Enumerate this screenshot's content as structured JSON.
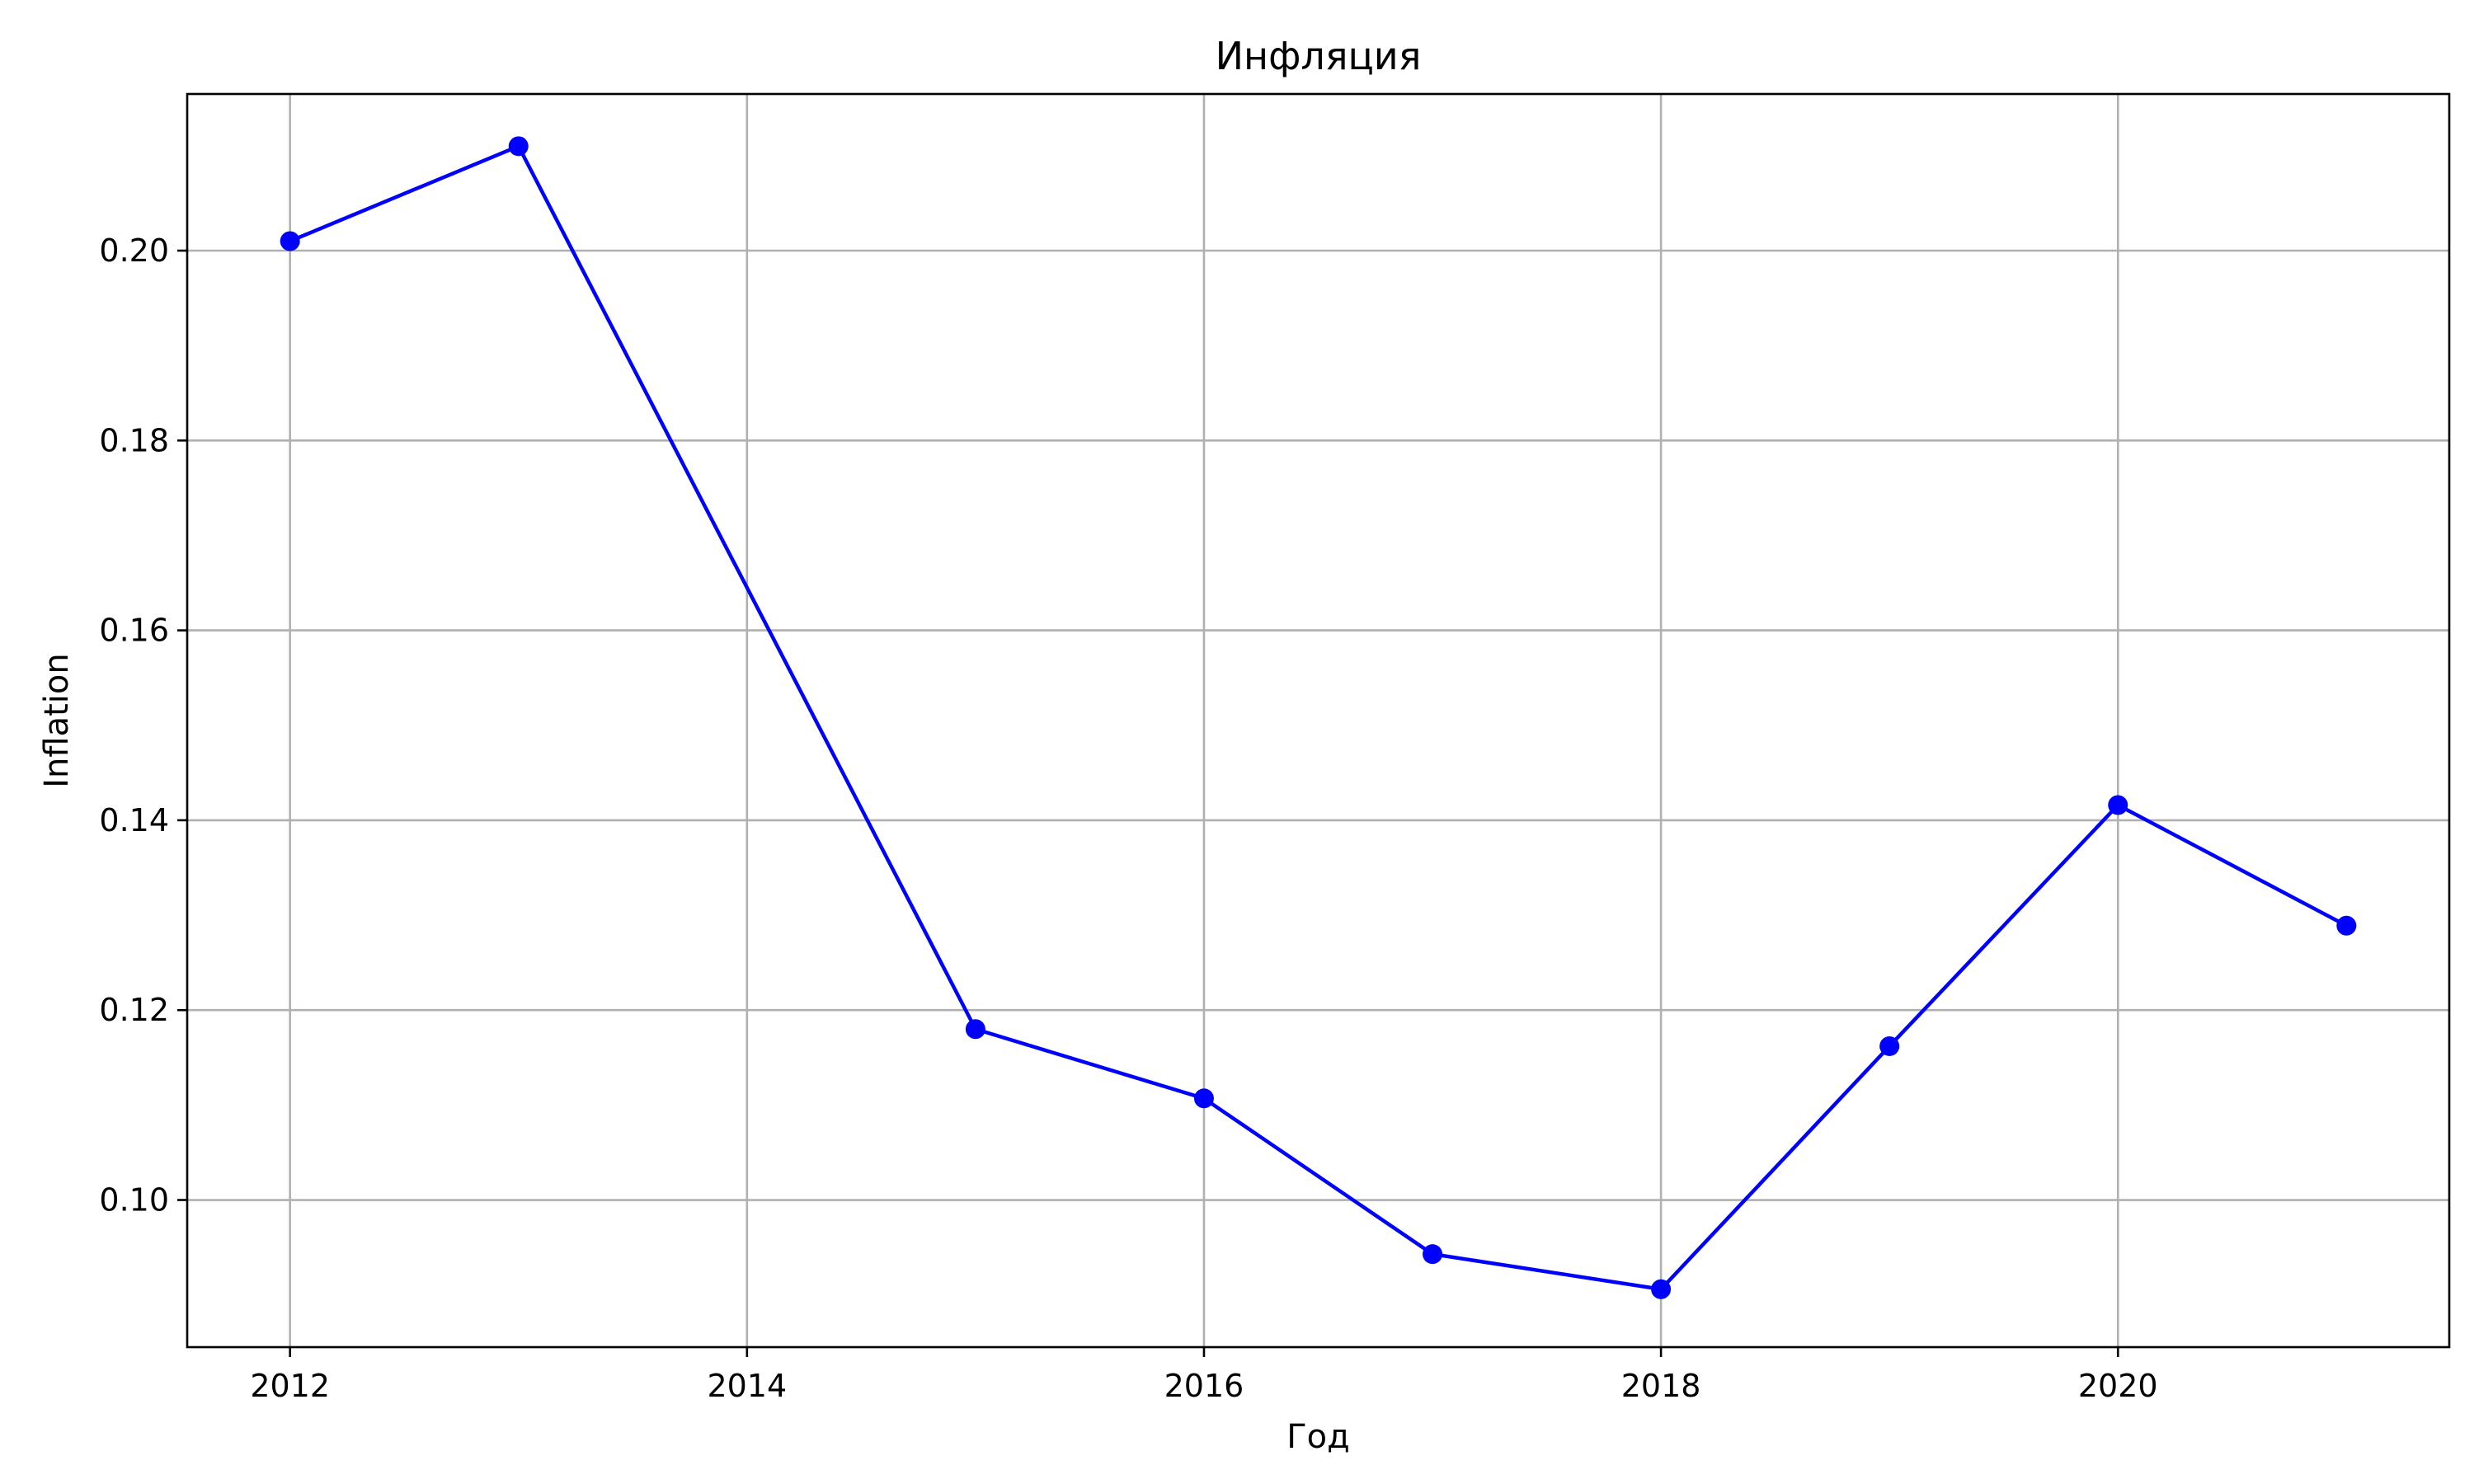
{
  "chart_data": {
    "type": "line",
    "title": "Инфляция",
    "xlabel": "Год",
    "ylabel": "Inflation",
    "x": [
      2012,
      2013,
      2015,
      2016,
      2017,
      2018,
      2019,
      2020,
      2021
    ],
    "series": [
      {
        "values": [
          0.201,
          0.211,
          0.118,
          0.1107,
          0.0943,
          0.0906,
          0.1162,
          0.1416,
          0.1289
        ],
        "color": "#0000ff",
        "marker": "circle"
      }
    ],
    "xlim": [
      2011.55,
      2021.45
    ],
    "ylim": [
      0.0845,
      0.2165
    ],
    "xticks": [
      2012,
      2014,
      2016,
      2018,
      2020
    ],
    "yticks": [
      0.1,
      0.12,
      0.14,
      0.16,
      0.18,
      0.2
    ],
    "yticks_labels": [
      "0.10",
      "0.12",
      "0.14",
      "0.16",
      "0.18",
      "0.20"
    ],
    "grid": true,
    "legend": false
  }
}
